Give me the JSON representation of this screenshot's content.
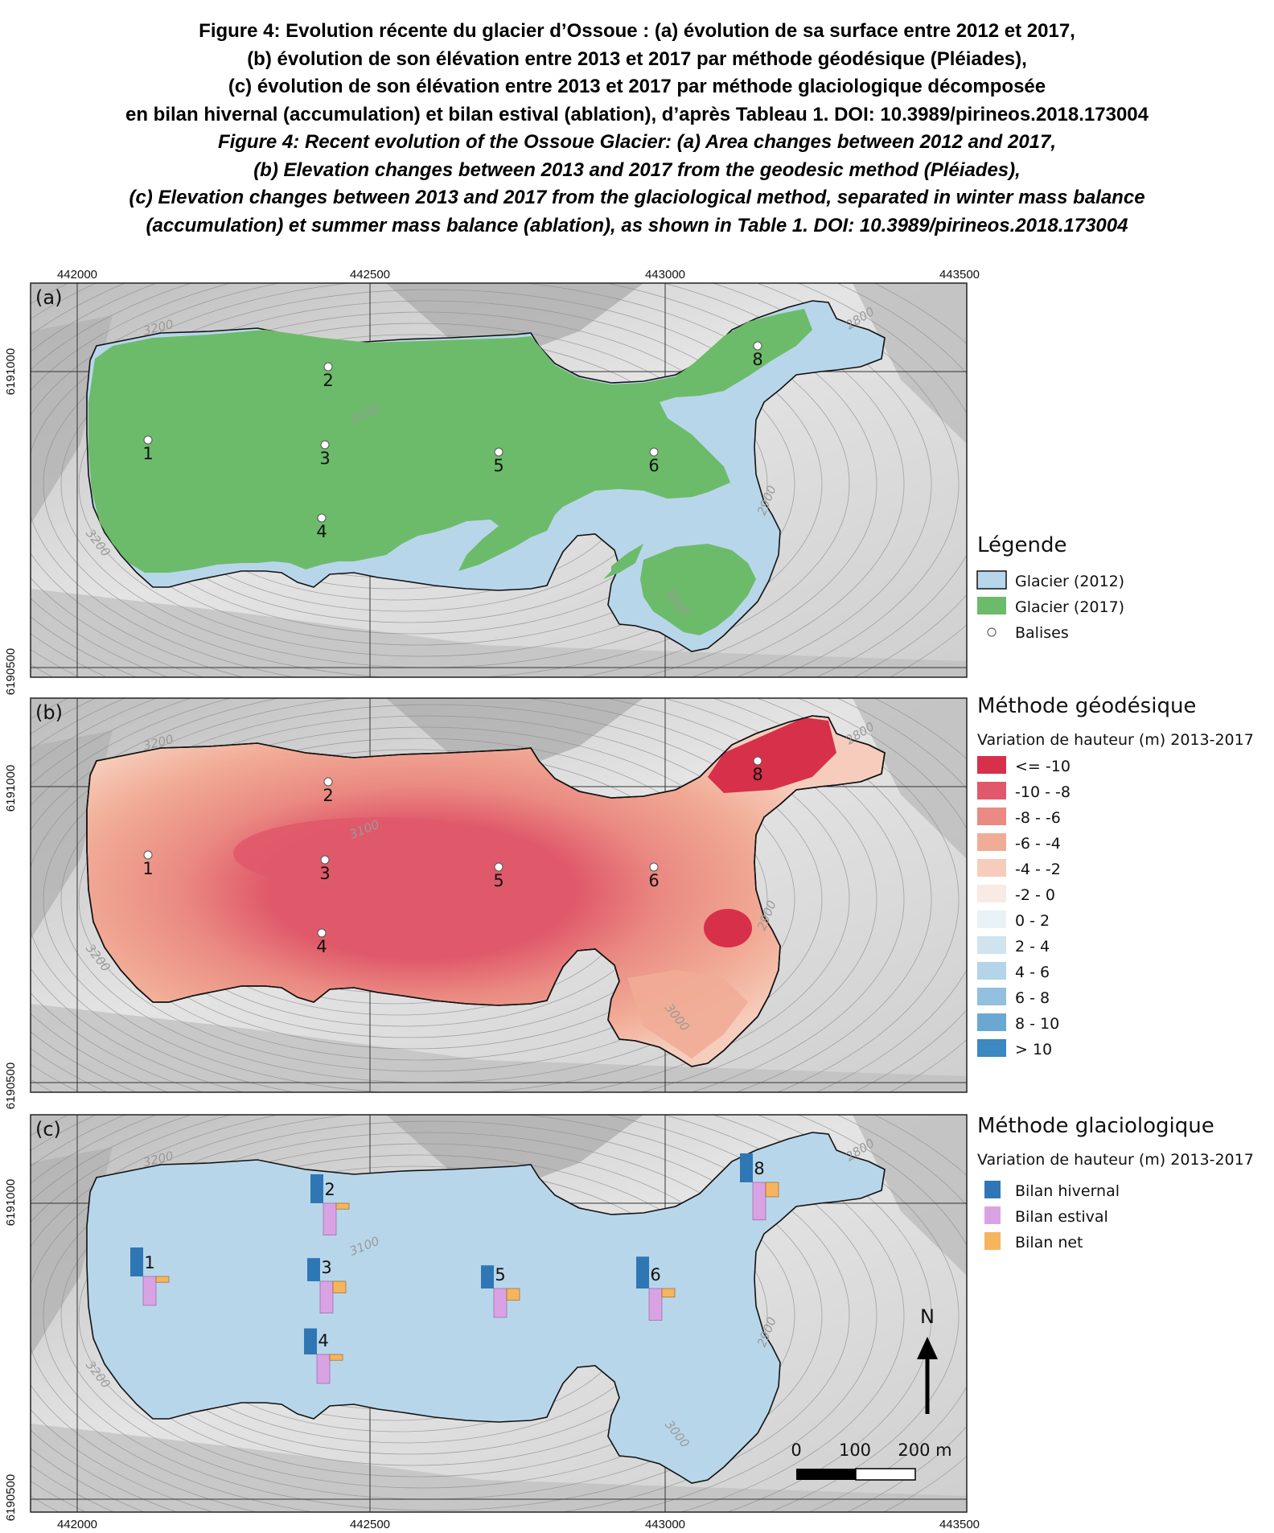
{
  "caption": {
    "fr": [
      "Figure 4: Evolution récente du glacier d’Ossoue : (a) évolution de sa surface entre 2012 et 2017,",
      "(b) évolution de son élévation entre 2013 et 2017 par méthode géodésique (Pléiades),",
      "(c) évolution de son élévation entre 2013 et 2017 par méthode glaciologique décomposée",
      "en bilan hivernal (accumulation) et bilan estival (ablation), d’après Tableau 1. DOI: 10.3989/pirineos.2018.173004"
    ],
    "en": [
      "Figure 4: Recent evolution of the Ossoue Glacier: (a) Area changes between 2012 and 2017,",
      "(b) Elevation changes between 2013 and 2017 from the geodesic method (Pléiades),",
      "(c) Elevation changes between 2013 and 2017 from the glaciological method, separated in winter mass balance",
      "(accumulation) et summer mass balance (ablation), as shown in Table 1. DOI: 10.3989/pirineos.2018.173004"
    ]
  },
  "axes": {
    "x_ticks": [
      "442000",
      "442500",
      "443000",
      "443500"
    ],
    "y_ticks": [
      "6191000",
      "6190500"
    ]
  },
  "panels": [
    {
      "label": "(a)",
      "contours": [
        "3200",
        "3100",
        "3200",
        "2800",
        "2900",
        "3000"
      ]
    },
    {
      "label": "(b)",
      "contours": [
        "3200",
        "3100",
        "3200",
        "2800",
        "2900",
        "3000"
      ]
    },
    {
      "label": "(c)",
      "contours": [
        "3200",
        "3100",
        "3200",
        "2800",
        "2900",
        "3000"
      ]
    }
  ],
  "balises": [
    {
      "id": "1",
      "winter": 1.0,
      "summer": 1.0,
      "net": 0.2
    },
    {
      "id": "2",
      "winter": 1.0,
      "summer": 1.1,
      "net": 0.2
    },
    {
      "id": "3",
      "winter": 0.8,
      "summer": 1.1,
      "net": 0.4
    },
    {
      "id": "4",
      "winter": 0.9,
      "summer": 1.0,
      "net": 0.2
    },
    {
      "id": "5",
      "winter": 0.8,
      "summer": 1.0,
      "net": 0.4
    },
    {
      "id": "6",
      "winter": 1.1,
      "summer": 1.1,
      "net": 0.3
    },
    {
      "id": "8",
      "winter": 1.0,
      "summer": 1.3,
      "net": 0.5
    }
  ],
  "legend_a": {
    "title": "Légende",
    "items": [
      {
        "label": "Glacier (2012)",
        "color": "#b8d6ea"
      },
      {
        "label": "Glacier (2017)",
        "color": "#6cbb6a"
      },
      {
        "label": "Balises",
        "color": "#ffffff"
      }
    ]
  },
  "legend_b": {
    "title": "Méthode géodésique",
    "subtitle": "Variation de hauteur (m) 2013-2017",
    "classes": [
      {
        "label": "<= -10",
        "color": "#d7304b"
      },
      {
        "label": "-10 - -8",
        "color": "#e0596a"
      },
      {
        "label": "-8 - -6",
        "color": "#ea8a82"
      },
      {
        "label": "-6 - -4",
        "color": "#f1ac96"
      },
      {
        "label": "-4 - -2",
        "color": "#f6cdbc"
      },
      {
        "label": "-2 - 0",
        "color": "#faeae4"
      },
      {
        "label": "0 - 2",
        "color": "#e9f2f7"
      },
      {
        "label": "2 - 4",
        "color": "#d0e4ef"
      },
      {
        "label": "4 - 6",
        "color": "#b4d4e8"
      },
      {
        "label": "6 - 8",
        "color": "#92c0de"
      },
      {
        "label": "8 - 10",
        "color": "#6aa8d2"
      },
      {
        "label": "> 10",
        "color": "#3c88c0"
      }
    ]
  },
  "legend_c": {
    "title": "Méthode glaciologique",
    "subtitle": "Variation de hauteur (m) 2013-2017",
    "items": [
      {
        "label": "Bilan hivernal",
        "color": "#2f77b4"
      },
      {
        "label": "Bilan estival",
        "color": "#d9a3e3"
      },
      {
        "label": "Bilan net",
        "color": "#f6b45c"
      }
    ]
  },
  "scalebar": {
    "labels": [
      "0",
      "100",
      "200 m"
    ]
  },
  "north": {
    "label": "N"
  }
}
